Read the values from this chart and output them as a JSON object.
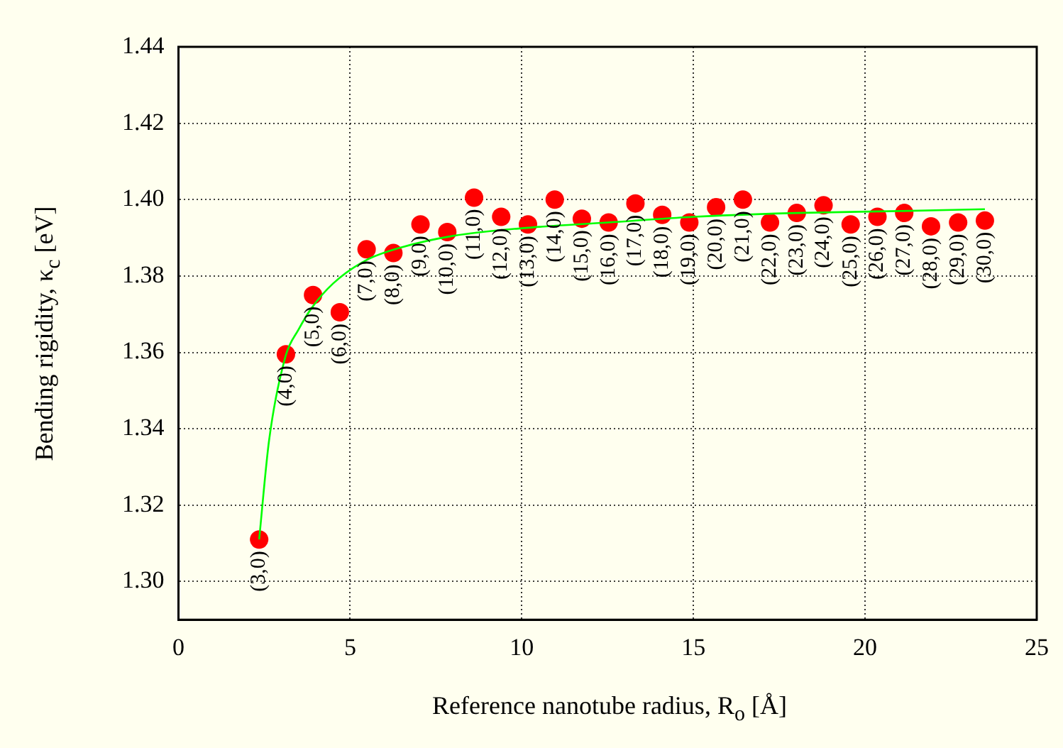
{
  "chart_data": {
    "type": "scatter",
    "xlabel": "Reference nanotube radius, R$_{o}$ [Å]",
    "ylabel": "Bending rigidity, κ$_{c}$ [eV]",
    "xlim": [
      0,
      25
    ],
    "xticks": [
      0,
      5,
      10,
      15,
      20,
      25
    ],
    "ylim": [
      1.29,
      1.44
    ],
    "yticks": [
      {
        "value": 1.3,
        "label": "1.30"
      },
      {
        "value": 1.32,
        "label": "1.32"
      },
      {
        "value": 1.34,
        "label": "1.34"
      },
      {
        "value": 1.36,
        "label": "1.36"
      },
      {
        "value": 1.38,
        "label": "1.38"
      },
      {
        "value": 1.4,
        "label": "1.40"
      },
      {
        "value": 1.42,
        "label": "1.42"
      },
      {
        "value": 1.44,
        "label": "1.44"
      }
    ],
    "grid": true,
    "legend": false,
    "series": [
      {
        "type": "scatter",
        "color": "#ff0000",
        "marker": "circle",
        "x": [
          2.35,
          3.13,
          3.92,
          4.7,
          5.48,
          6.26,
          7.05,
          7.83,
          8.61,
          9.4,
          10.18,
          10.96,
          11.75,
          12.53,
          13.31,
          14.09,
          14.88,
          15.66,
          16.44,
          17.23,
          18.01,
          18.79,
          19.58,
          20.36,
          21.14,
          21.92,
          22.71,
          23.49
        ],
        "values": [
          1.311,
          1.3595,
          1.375,
          1.3705,
          1.387,
          1.386,
          1.3935,
          1.3915,
          1.4005,
          1.3955,
          1.3935,
          1.4,
          1.395,
          1.394,
          1.399,
          1.396,
          1.394,
          1.398,
          1.4,
          1.394,
          1.3965,
          1.3985,
          1.3935,
          1.3955,
          1.3965,
          1.393,
          1.394,
          1.3945
        ]
      },
      {
        "type": "line",
        "color": "#00ff00",
        "marker": "none",
        "x": [
          2.35,
          2.64,
          3.12,
          3.5,
          3.87,
          4.5,
          5.44,
          6.5,
          8,
          10,
          12.5,
          15,
          18,
          21,
          23.49
        ],
        "values": [
          1.311,
          1.337,
          1.359,
          1.366,
          1.3715,
          1.378,
          1.384,
          1.3875,
          1.3905,
          1.3925,
          1.394,
          1.3955,
          1.3965,
          1.397,
          1.3975
        ]
      }
    ],
    "annotations": [
      {
        "text": "(3,0)",
        "x": 2.35,
        "y": 1.311
      },
      {
        "text": "(4,0)",
        "x": 3.13,
        "y": 1.3595
      },
      {
        "text": "(5,0)",
        "x": 3.92,
        "y": 1.375
      },
      {
        "text": "(6,0)",
        "x": 4.7,
        "y": 1.3705
      },
      {
        "text": "(7,0)",
        "x": 5.48,
        "y": 1.387
      },
      {
        "text": "(8,0)",
        "x": 6.26,
        "y": 1.386
      },
      {
        "text": "(9,0)",
        "x": 7.05,
        "y": 1.3935
      },
      {
        "text": "(10,0)",
        "x": 7.83,
        "y": 1.3915
      },
      {
        "text": "(11,0)",
        "x": 8.61,
        "y": 1.4005
      },
      {
        "text": "(12,0)",
        "x": 9.4,
        "y": 1.3955
      },
      {
        "text": "(13,0)",
        "x": 10.18,
        "y": 1.3935
      },
      {
        "text": "(14,0)",
        "x": 10.96,
        "y": 1.4
      },
      {
        "text": "(15,0)",
        "x": 11.75,
        "y": 1.395
      },
      {
        "text": "(16,0)",
        "x": 12.53,
        "y": 1.394
      },
      {
        "text": "(17,0)",
        "x": 13.31,
        "y": 1.399
      },
      {
        "text": "(18,0)",
        "x": 14.09,
        "y": 1.396
      },
      {
        "text": "(19,0)",
        "x": 14.88,
        "y": 1.394
      },
      {
        "text": "(20,0)",
        "x": 15.66,
        "y": 1.398
      },
      {
        "text": "(21,0)",
        "x": 16.44,
        "y": 1.4
      },
      {
        "text": "(22,0)",
        "x": 17.23,
        "y": 1.394
      },
      {
        "text": "(23,0)",
        "x": 18.01,
        "y": 1.3965
      },
      {
        "text": "(24,0)",
        "x": 18.79,
        "y": 1.3985
      },
      {
        "text": "(25,0)",
        "x": 19.58,
        "y": 1.3935
      },
      {
        "text": "(26,0)",
        "x": 20.36,
        "y": 1.3955
      },
      {
        "text": "(27,0)",
        "x": 21.14,
        "y": 1.3965
      },
      {
        "text": "(28,0)",
        "x": 21.92,
        "y": 1.393
      },
      {
        "text": "(29,0)",
        "x": 22.71,
        "y": 1.394
      },
      {
        "text": "(30,0)",
        "x": 23.49,
        "y": 1.3945
      }
    ]
  }
}
